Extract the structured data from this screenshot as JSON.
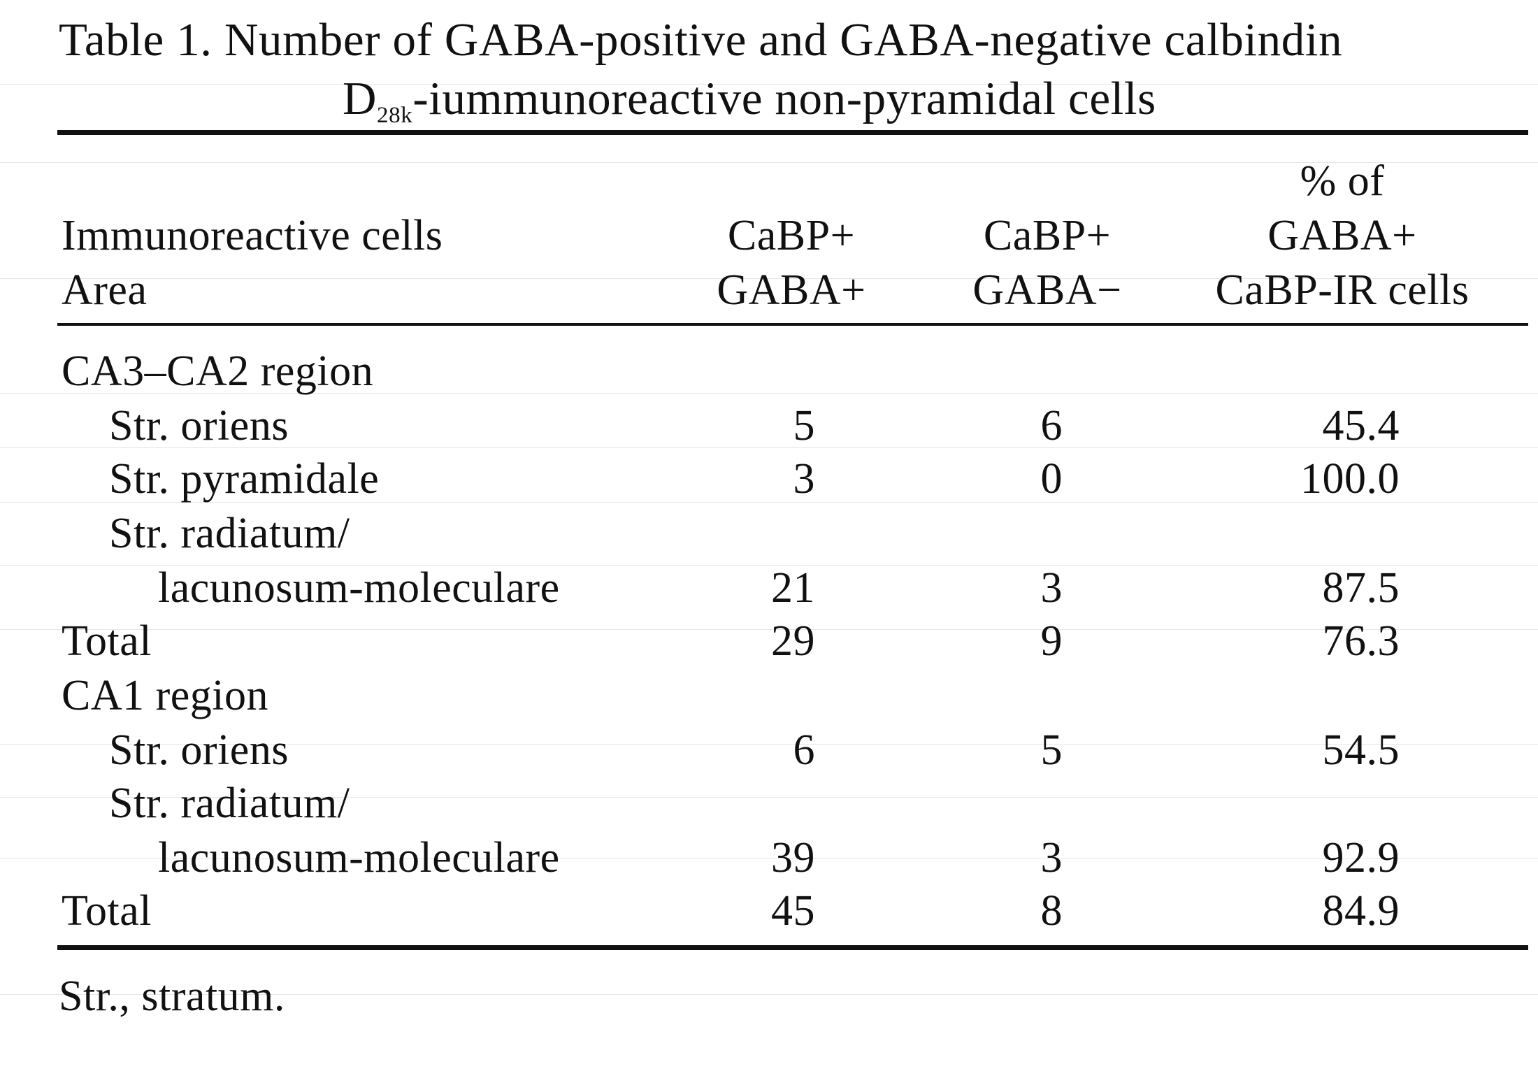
{
  "caption": {
    "line1": "Table 1. Number of GABA-positive and GABA-negative calbindin",
    "line2_prefix": "D",
    "line2_subscript": "28k",
    "line2_suffix": "-iummunoreactive non-pyramidal cells"
  },
  "header": {
    "col1_line1": "Immunoreactive cells",
    "col1_line2": "Area",
    "col2_line1": "CaBP+",
    "col2_line2": "GABA+",
    "col3_line1": "CaBP+",
    "col3_line2": "GABA−",
    "col4_line1": "% of",
    "col4_line2": "GABA+",
    "col4_line3": "CaBP-IR cells"
  },
  "rows": [
    {
      "label": "CA3–CA2 region",
      "c1": "",
      "c2": "",
      "c3": ""
    },
    {
      "label": "Str. oriens",
      "c1": "5",
      "c2": "6",
      "c3": "45.4"
    },
    {
      "label": "Str. pyramidale",
      "c1": "3",
      "c2": "0",
      "c3": "100.0"
    },
    {
      "label": "Str. radiatum/",
      "c1": "",
      "c2": "",
      "c3": ""
    },
    {
      "label": "lacunosum-moleculare",
      "c1": "21",
      "c2": "3",
      "c3": "87.5"
    },
    {
      "label": "Total",
      "c1": "29",
      "c2": "9",
      "c3": "76.3"
    },
    {
      "label": "CA1 region",
      "c1": "",
      "c2": "",
      "c3": ""
    },
    {
      "label": "Str. oriens",
      "c1": "6",
      "c2": "5",
      "c3": "54.5"
    },
    {
      "label": "Str. radiatum/",
      "c1": "",
      "c2": "",
      "c3": ""
    },
    {
      "label": "lacunosum-moleculare",
      "c1": "39",
      "c2": "3",
      "c3": "92.9"
    },
    {
      "label": "Total",
      "c1": "45",
      "c2": "8",
      "c3": "84.9"
    }
  ],
  "footnote": "Str., stratum."
}
